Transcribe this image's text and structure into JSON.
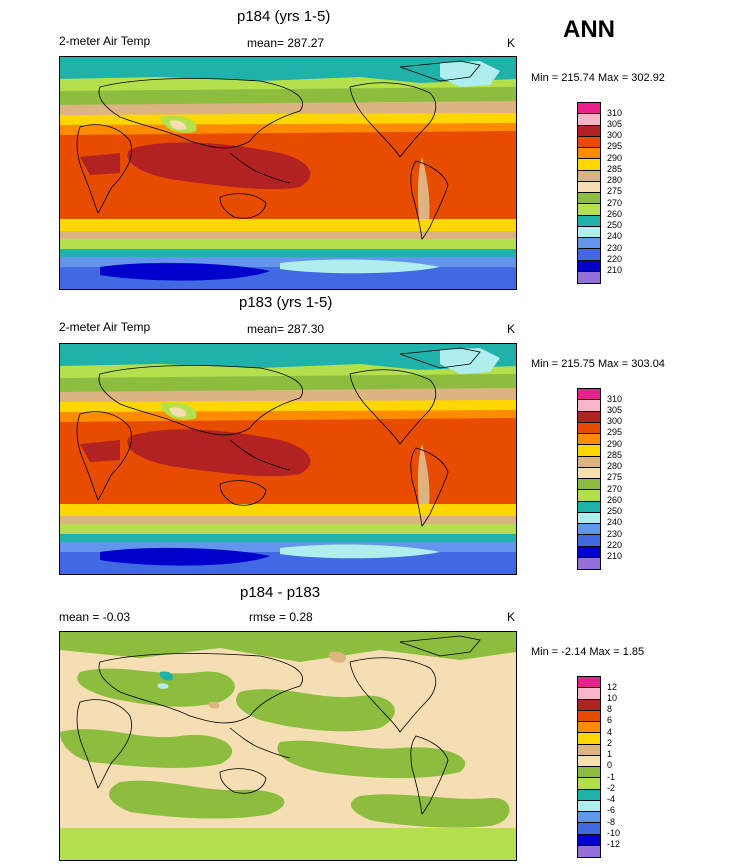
{
  "season": "ANN",
  "panels": [
    {
      "title": "p184 (yrs 1-5)",
      "left_label": "2-meter Air Temp",
      "center_label": "mean= 287.27",
      "units": "K",
      "minmax": "Min = 215.74 Max = 302.92",
      "ticks": [
        "310",
        "305",
        "300",
        "295",
        "290",
        "285",
        "280",
        "275",
        "270",
        "260",
        "250",
        "240",
        "230",
        "220",
        "210"
      ]
    },
    {
      "title": "p183 (yrs 1-5)",
      "left_label": "2-meter Air Temp",
      "center_label": "mean= 287.30",
      "units": "K",
      "minmax": "Min = 215.75 Max = 303.04",
      "ticks": [
        "310",
        "305",
        "300",
        "295",
        "290",
        "285",
        "280",
        "275",
        "270",
        "260",
        "250",
        "240",
        "230",
        "220",
        "210"
      ]
    },
    {
      "title": "p184 - p183",
      "left_label": "mean =  -0.03",
      "center_label": "rmse =   0.28",
      "units": "K",
      "minmax": "Min =  -2.14 Max =   1.85",
      "ticks": [
        "12",
        "10",
        "8",
        "6",
        "4",
        "2",
        "1",
        "0",
        "-1",
        "-2",
        "-4",
        "-6",
        "-8",
        "-10",
        "-12"
      ]
    }
  ],
  "colors": {
    "abs_scale": [
      "#e8218c",
      "#f7b6c8",
      "#b22222",
      "#e84c00",
      "#ff8c00",
      "#ffd700",
      "#dcb482",
      "#f5deb3",
      "#8cbd3f",
      "#b4e04e",
      "#20b2aa",
      "#afeeee",
      "#6495ed",
      "#4169e1",
      "#0000cd",
      "#9370db"
    ],
    "diff_scale": [
      "#e8218c",
      "#f7b6c8",
      "#b22222",
      "#e84c00",
      "#ff8c00",
      "#ffd700",
      "#dcb482",
      "#f5deb3",
      "#8cbd3f",
      "#b4e04e",
      "#20b2aa",
      "#afeeee",
      "#6495ed",
      "#4169e1",
      "#0000cd",
      "#9370db"
    ]
  }
}
